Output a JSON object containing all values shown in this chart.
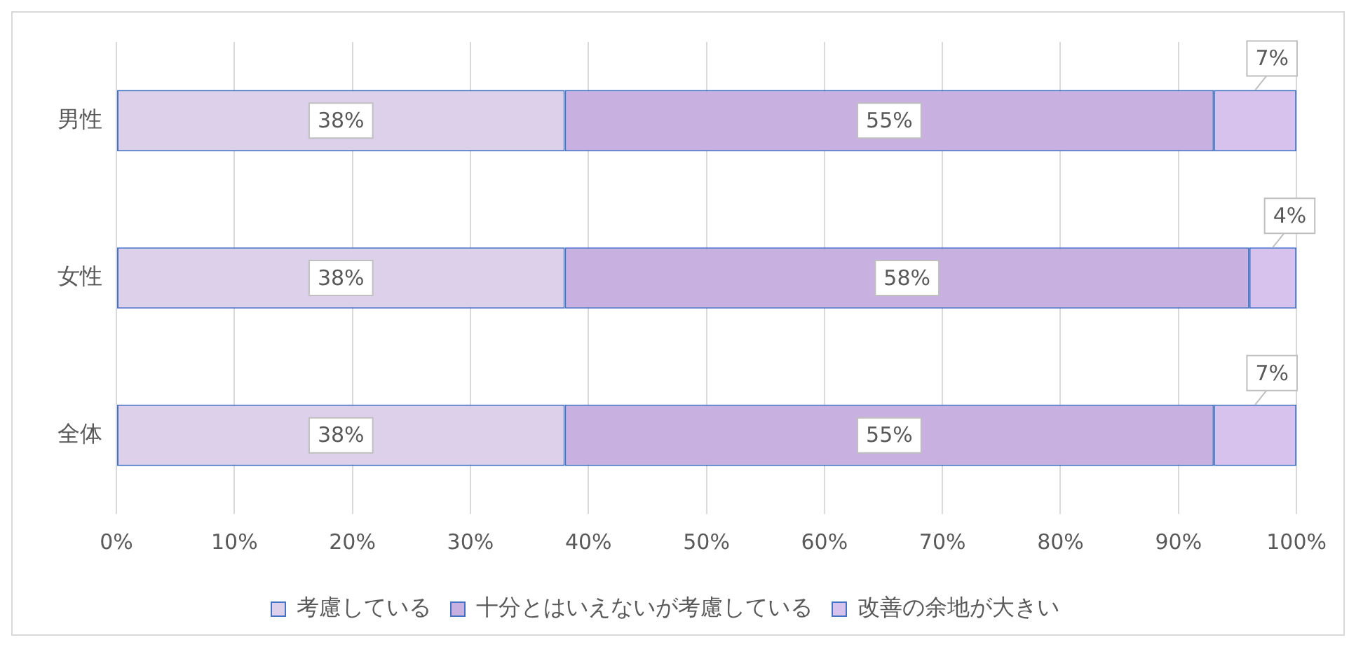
{
  "chart_data": {
    "type": "bar",
    "orientation": "horizontal",
    "stacked": true,
    "categories": [
      "男性",
      "女性",
      "全体"
    ],
    "series": [
      {
        "name": "考慮している",
        "color": "#ddd0ea",
        "values": [
          38,
          38,
          38
        ],
        "value_labels": [
          "38%",
          "38%",
          "38%"
        ]
      },
      {
        "name": "十分とはいえないが考慮している",
        "color": "#c8b0e0",
        "values": [
          55,
          58,
          55
        ],
        "value_labels": [
          "55%",
          "58%",
          "55%"
        ]
      },
      {
        "name": "改善の余地が大きい",
        "color": "#d6c2ec",
        "values": [
          7,
          4,
          7
        ],
        "value_labels": [
          "7%",
          "4%",
          "7%"
        ]
      }
    ],
    "xlim": [
      0,
      100
    ],
    "xticks": [
      {
        "value": 0,
        "label": "0%"
      },
      {
        "value": 10,
        "label": "10%"
      },
      {
        "value": 20,
        "label": "20%"
      },
      {
        "value": 30,
        "label": "30%"
      },
      {
        "value": 40,
        "label": "40%"
      },
      {
        "value": 50,
        "label": "50%"
      },
      {
        "value": 60,
        "label": "60%"
      },
      {
        "value": 70,
        "label": "70%"
      },
      {
        "value": 80,
        "label": "80%"
      },
      {
        "value": 90,
        "label": "90%"
      },
      {
        "value": 100,
        "label": "100%"
      }
    ],
    "grid": "x",
    "legend": "bottom"
  }
}
